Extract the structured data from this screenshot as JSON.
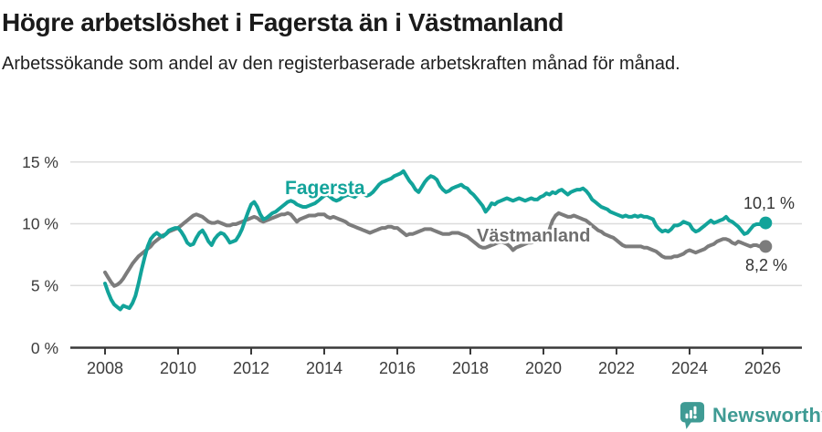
{
  "header": {
    "title": "Högre arbetslöshet i Fagersta än i Västmanland",
    "subtitle": "Arbetssökande som andel av den registerbaserade arbetskraften månad för månad."
  },
  "branding": {
    "name": "Newsworthy",
    "logo_icon": "speech-bubble-bar-chart-icon",
    "color": "#3f9b94"
  },
  "colors": {
    "fagersta_line": "#12a39a",
    "vastmanland_line": "#7c7c7c",
    "axis": "#3a3a3a",
    "grid": "#dcdcdc",
    "title_text": "#1a1a1a",
    "value_label_text": "#333333"
  },
  "chart_data": {
    "type": "line",
    "title": "Högre arbetslöshet i Fagersta än i Västmanland",
    "subtitle": "Arbetssökande som andel av den registerbaserade arbetskraften månad för månad.",
    "x_unit": "month",
    "x_start": "2008-01",
    "x_end": "2026-02",
    "ylim": [
      0,
      15.8
    ],
    "y_ticks": [
      0,
      5,
      10,
      15
    ],
    "y_tick_labels": [
      "0 %",
      "5 %",
      "10 %",
      "15 %"
    ],
    "x_ticks": [
      2008,
      2010,
      2012,
      2014,
      2016,
      2018,
      2020,
      2022,
      2024,
      2026
    ],
    "x_tick_labels": [
      "2008",
      "2010",
      "2012",
      "2014",
      "2016",
      "2018",
      "2020",
      "2022",
      "2024",
      "2026"
    ],
    "grid": "horizontal",
    "legend_position": "inline-labels",
    "series": [
      {
        "name": "Fagersta",
        "key": "fagersta",
        "color": "#12a39a",
        "end_label": "10,1 %",
        "end_value": 10.1,
        "values": [
          5.2,
          4.5,
          3.9,
          3.5,
          3.3,
          3.1,
          3.4,
          3.3,
          3.2,
          3.6,
          4.2,
          5.2,
          6.3,
          7.3,
          8.2,
          8.8,
          9.1,
          9.3,
          9.1,
          9.0,
          9.2,
          9.5,
          9.6,
          9.7,
          9.7,
          9.4,
          9.0,
          8.5,
          8.3,
          8.4,
          8.9,
          9.3,
          9.5,
          9.1,
          8.6,
          8.3,
          8.8,
          9.1,
          9.3,
          9.2,
          8.9,
          8.5,
          8.6,
          8.7,
          9.1,
          9.6,
          10.3,
          11.0,
          11.6,
          11.8,
          11.4,
          10.8,
          10.4,
          10.5,
          10.7,
          10.9,
          11.0,
          11.2,
          11.4,
          11.6,
          11.8,
          11.9,
          11.8,
          11.6,
          11.5,
          11.4,
          11.4,
          11.5,
          11.6,
          11.7,
          11.9,
          12.1,
          12.3,
          12.4,
          12.2,
          12.0,
          11.9,
          12.0,
          12.2,
          12.3,
          12.4,
          12.3,
          12.2,
          12.4,
          12.5,
          12.4,
          12.3,
          12.4,
          12.6,
          12.9,
          13.2,
          13.4,
          13.5,
          13.6,
          13.7,
          13.9,
          14.0,
          14.1,
          14.3,
          13.9,
          13.5,
          13.2,
          12.8,
          12.6,
          13.0,
          13.4,
          13.7,
          13.9,
          13.8,
          13.6,
          13.1,
          12.8,
          12.6,
          12.7,
          12.9,
          13.0,
          13.1,
          13.2,
          13.0,
          12.9,
          12.6,
          12.4,
          12.1,
          11.8,
          11.5,
          11.0,
          11.3,
          11.7,
          11.6,
          11.8,
          11.9,
          12.0,
          12.1,
          12.0,
          11.9,
          12.0,
          12.1,
          12.0,
          11.9,
          12.0,
          12.1,
          12.0,
          12.0,
          12.2,
          12.3,
          12.5,
          12.4,
          12.6,
          12.5,
          12.7,
          12.8,
          12.6,
          12.4,
          12.6,
          12.7,
          12.8,
          12.8,
          12.9,
          12.7,
          12.4,
          12.0,
          11.8,
          11.6,
          11.4,
          11.3,
          11.2,
          11.0,
          10.9,
          10.8,
          10.7,
          10.6,
          10.7,
          10.6,
          10.6,
          10.7,
          10.6,
          10.7,
          10.6,
          10.6,
          10.5,
          10.4,
          9.9,
          9.6,
          9.4,
          9.5,
          9.4,
          9.6,
          9.9,
          9.9,
          10.0,
          10.2,
          10.1,
          10.0,
          9.6,
          9.4,
          9.5,
          9.7,
          9.9,
          10.1,
          10.3,
          10.1,
          10.2,
          10.3,
          10.4,
          10.6,
          10.3,
          10.2,
          10.0,
          9.8,
          9.5,
          9.2,
          9.3,
          9.6,
          9.9,
          10.0,
          10.0,
          10.0,
          10.1
        ]
      },
      {
        "name": "Västmanland",
        "key": "vastmanland",
        "color": "#7c7c7c",
        "end_label": "8,2 %",
        "end_value": 8.2,
        "values": [
          6.1,
          5.7,
          5.3,
          5.0,
          5.1,
          5.3,
          5.6,
          6.0,
          6.4,
          6.8,
          7.1,
          7.4,
          7.6,
          7.8,
          8.0,
          8.2,
          8.5,
          8.7,
          8.9,
          9.1,
          9.2,
          9.4,
          9.5,
          9.6,
          9.7,
          9.9,
          10.1,
          10.3,
          10.5,
          10.7,
          10.8,
          10.7,
          10.6,
          10.4,
          10.2,
          10.1,
          10.1,
          10.2,
          10.1,
          10.0,
          9.9,
          9.9,
          10.0,
          10.0,
          10.1,
          10.2,
          10.3,
          10.4,
          10.5,
          10.6,
          10.5,
          10.3,
          10.2,
          10.3,
          10.4,
          10.5,
          10.6,
          10.7,
          10.8,
          10.8,
          10.9,
          10.8,
          10.5,
          10.2,
          10.4,
          10.5,
          10.6,
          10.7,
          10.7,
          10.7,
          10.8,
          10.8,
          10.8,
          10.6,
          10.5,
          10.6,
          10.5,
          10.4,
          10.3,
          10.2,
          10.0,
          9.9,
          9.8,
          9.7,
          9.6,
          9.5,
          9.4,
          9.3,
          9.4,
          9.5,
          9.6,
          9.7,
          9.7,
          9.8,
          9.8,
          9.7,
          9.7,
          9.5,
          9.3,
          9.1,
          9.2,
          9.2,
          9.3,
          9.4,
          9.5,
          9.6,
          9.6,
          9.6,
          9.5,
          9.4,
          9.3,
          9.2,
          9.2,
          9.2,
          9.3,
          9.3,
          9.3,
          9.2,
          9.1,
          9.0,
          8.8,
          8.6,
          8.4,
          8.2,
          8.1,
          8.1,
          8.2,
          8.3,
          8.4,
          8.5,
          8.6,
          8.5,
          8.4,
          8.2,
          7.9,
          8.1,
          8.2,
          8.3,
          8.4,
          8.5,
          8.5,
          8.6,
          8.6,
          8.7,
          8.8,
          8.9,
          9.6,
          10.3,
          10.7,
          10.9,
          10.8,
          10.7,
          10.6,
          10.6,
          10.7,
          10.6,
          10.5,
          10.4,
          10.3,
          10.1,
          9.9,
          9.7,
          9.5,
          9.4,
          9.2,
          9.1,
          9.0,
          8.9,
          8.7,
          8.5,
          8.3,
          8.2,
          8.2,
          8.2,
          8.2,
          8.2,
          8.2,
          8.1,
          8.1,
          8.0,
          7.9,
          7.8,
          7.6,
          7.4,
          7.3,
          7.3,
          7.3,
          7.4,
          7.4,
          7.5,
          7.6,
          7.8,
          7.9,
          7.8,
          7.7,
          7.8,
          7.9,
          8.0,
          8.2,
          8.3,
          8.4,
          8.6,
          8.7,
          8.8,
          8.8,
          8.7,
          8.5,
          8.4,
          8.6,
          8.5,
          8.4,
          8.3,
          8.2,
          8.3,
          8.3,
          8.2,
          8.2,
          8.2
        ]
      }
    ]
  }
}
